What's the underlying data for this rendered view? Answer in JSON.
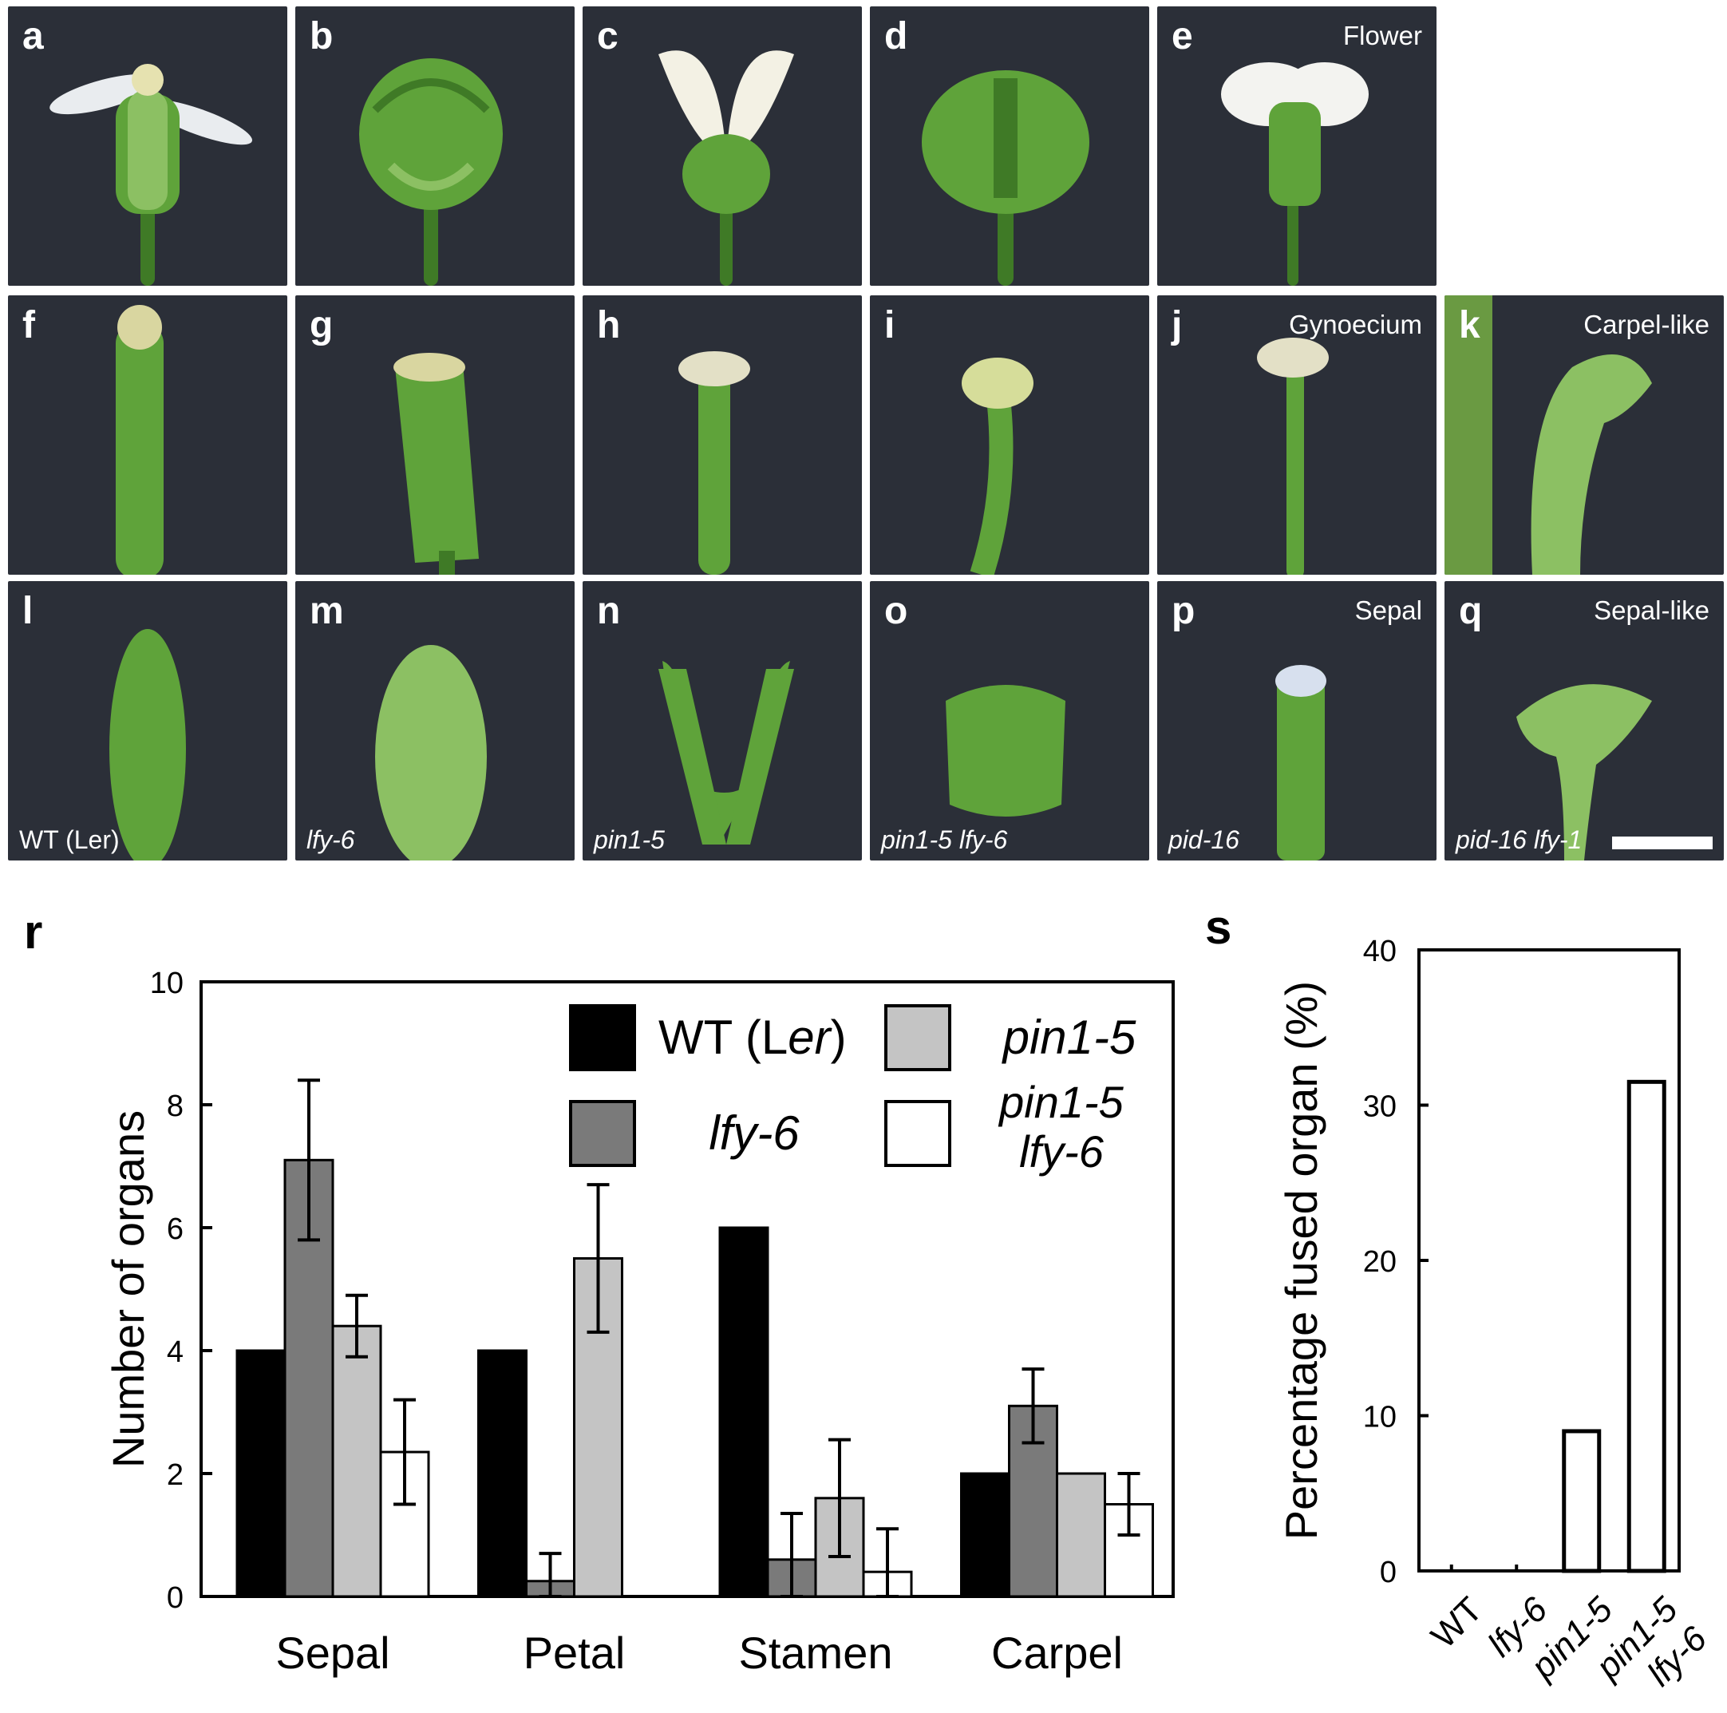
{
  "panels": [
    {
      "letter": "a",
      "tag": "",
      "genotype": "",
      "kind": "flower-open"
    },
    {
      "letter": "b",
      "tag": "",
      "genotype": "",
      "kind": "flower-green"
    },
    {
      "letter": "c",
      "tag": "",
      "genotype": "",
      "kind": "flower-white"
    },
    {
      "letter": "d",
      "tag": "",
      "genotype": "",
      "kind": "flower-bud"
    },
    {
      "letter": "e",
      "tag": "Flower",
      "genotype": "",
      "kind": "flower-white-small"
    },
    {
      "letter": "f",
      "tag": "",
      "genotype": "",
      "kind": "gyno-wide"
    },
    {
      "letter": "g",
      "tag": "",
      "genotype": "",
      "kind": "gyno-broad"
    },
    {
      "letter": "h",
      "tag": "",
      "genotype": "",
      "kind": "gyno-thin"
    },
    {
      "letter": "i",
      "tag": "",
      "genotype": "",
      "kind": "gyno-curved"
    },
    {
      "letter": "j",
      "tag": "Gynoecium",
      "genotype": "",
      "kind": "gyno-stalk"
    },
    {
      "letter": "k",
      "tag": "Carpel-like",
      "genotype": "",
      "kind": "carpel-like"
    },
    {
      "letter": "l",
      "tag": "",
      "genotype": "WT (Ler)",
      "kind": "sepal"
    },
    {
      "letter": "m",
      "tag": "",
      "genotype": "lfy-6",
      "kind": "sepal-wide"
    },
    {
      "letter": "n",
      "tag": "",
      "genotype": "pin1-5",
      "kind": "sepal-v"
    },
    {
      "letter": "o",
      "tag": "",
      "genotype": "pin1-5 lfy-6",
      "kind": "sepal-short"
    },
    {
      "letter": "p",
      "tag": "Sepal",
      "genotype": "pid-16",
      "kind": "sepal-narrow"
    },
    {
      "letter": "q",
      "tag": "Sepal-like",
      "genotype": "pid-16 lfy-1",
      "kind": "sepal-like"
    }
  ],
  "colors": {
    "background": "#2b2f38",
    "wt": "#000000",
    "lfy6": "#7a7a7a",
    "pin15": "#c4c4c4",
    "double": "#ffffff",
    "plant": "#5fa33a",
    "petal": "#e9ecef"
  },
  "chart_data": [
    {
      "panel": "r",
      "type": "bar",
      "categories": [
        "Sepal",
        "Petal",
        "Stamen",
        "Carpel"
      ],
      "ylabel": "Number of organs",
      "ylim": [
        0,
        10
      ],
      "yticks": [
        0,
        2,
        4,
        6,
        8,
        10
      ],
      "legend": "top-right",
      "legend_entries": [
        {
          "name": "WT (Ler)",
          "series": 0
        },
        {
          "name": "pin1-5",
          "series": 2
        },
        {
          "name": "lfy-6",
          "series": 1
        },
        {
          "name": "pin1-5 lfy-6",
          "series": 3
        }
      ],
      "series": [
        {
          "name": "WT (Ler)",
          "color": "#000000",
          "values": [
            4,
            4,
            6,
            2
          ],
          "errors": [
            0,
            0,
            0,
            0
          ]
        },
        {
          "name": "lfy-6",
          "color": "#7a7a7a",
          "values": [
            7.1,
            0.25,
            0.6,
            3.1
          ],
          "errors": [
            1.3,
            0.45,
            0.75,
            0.6
          ]
        },
        {
          "name": "pin1-5",
          "color": "#c4c4c4",
          "values": [
            4.4,
            5.5,
            1.6,
            2
          ],
          "errors": [
            0.5,
            1.2,
            0.95,
            0
          ]
        },
        {
          "name": "pin1-5 lfy-6",
          "color": "#ffffff",
          "values": [
            2.35,
            0,
            0.4,
            1.5
          ],
          "errors": [
            0.85,
            0,
            0.7,
            0.5
          ]
        }
      ]
    },
    {
      "panel": "s",
      "type": "bar",
      "categories": [
        "WT",
        "lfy-6",
        "pin1-5",
        "pin1-5 lfy-6"
      ],
      "values": [
        0,
        0,
        9,
        31.5
      ],
      "ylabel": "Percentage fused organ (%)",
      "ylim": [
        0,
        40
      ],
      "yticks": [
        0,
        10,
        20,
        30,
        40
      ]
    }
  ]
}
